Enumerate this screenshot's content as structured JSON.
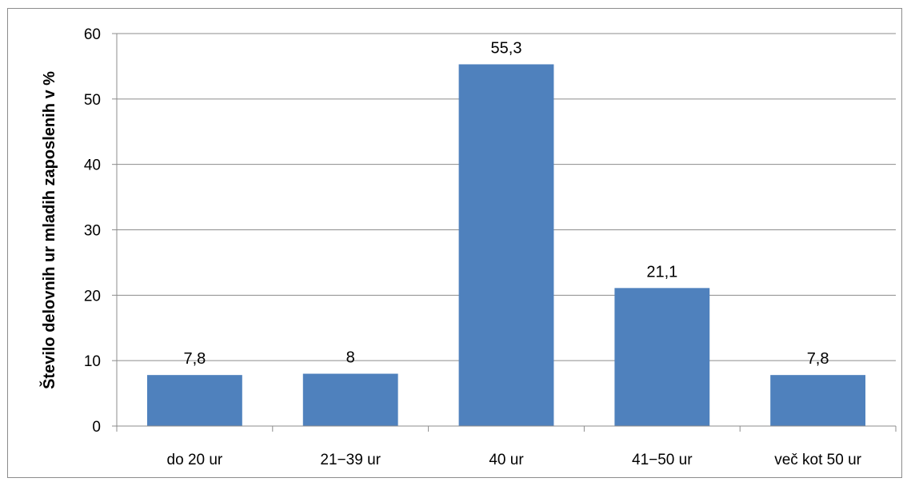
{
  "chart_data": {
    "type": "bar",
    "title": "",
    "xlabel": "",
    "ylabel": "Število delovnih ur mladih zaposlenih v %",
    "categories": [
      "do 20 ur",
      "21−39 ur",
      "40 ur",
      "41−50 ur",
      "več kot 50 ur"
    ],
    "values": [
      7.8,
      8,
      55.3,
      21.1,
      7.8
    ],
    "data_labels": [
      "7,8",
      "8",
      "55,3",
      "21,1",
      "7,8"
    ],
    "yticks": [
      0,
      10,
      20,
      30,
      40,
      50,
      60
    ],
    "ylim": [
      0,
      60
    ],
    "grid": true,
    "legend": "none",
    "bar_color": "#4f81bd",
    "grid_color": "#8c8c8c"
  }
}
